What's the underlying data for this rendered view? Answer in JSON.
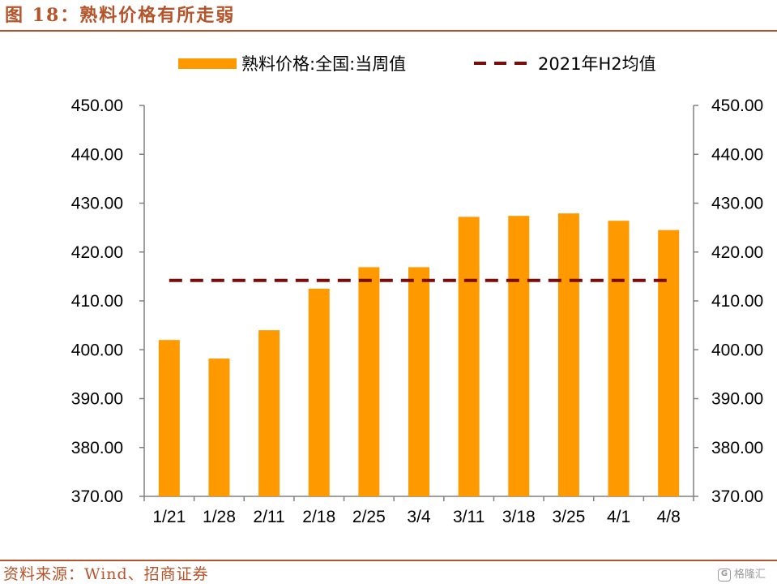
{
  "figure": {
    "title": "图 18：熟料价格有所走弱",
    "source": "资料来源：Wind、招商证券",
    "watermark": "格隆汇"
  },
  "colors": {
    "bar": "#ff9900",
    "avg_line": "#7b0c0c",
    "accent": "#b5532a",
    "axis": "#808080"
  },
  "chart_data": {
    "type": "bar",
    "categories": [
      "1/21",
      "1/28",
      "2/11",
      "2/18",
      "2/25",
      "3/4",
      "3/11",
      "3/18",
      "3/25",
      "4/1",
      "4/8"
    ],
    "series": [
      {
        "name": "熟料价格:全国:当周值",
        "type": "bar",
        "values": [
          402.0,
          398.2,
          404.0,
          412.5,
          416.9,
          416.9,
          427.2,
          427.4,
          427.9,
          426.4,
          424.5
        ]
      },
      {
        "name": "2021年H2均值",
        "type": "line",
        "style": "dashed",
        "values": [
          414.2,
          414.2,
          414.2,
          414.2,
          414.2,
          414.2,
          414.2,
          414.2,
          414.2,
          414.2,
          414.2
        ]
      }
    ],
    "ylim": [
      370,
      450
    ],
    "yticks": [
      "370.00",
      "380.00",
      "390.00",
      "400.00",
      "410.00",
      "420.00",
      "430.00",
      "440.00",
      "450.00"
    ],
    "secondary_yticks": [
      "370.00",
      "380.00",
      "390.00",
      "400.00",
      "410.00",
      "420.00",
      "430.00",
      "440.00",
      "450.00"
    ],
    "grid": false,
    "legend": "top"
  }
}
